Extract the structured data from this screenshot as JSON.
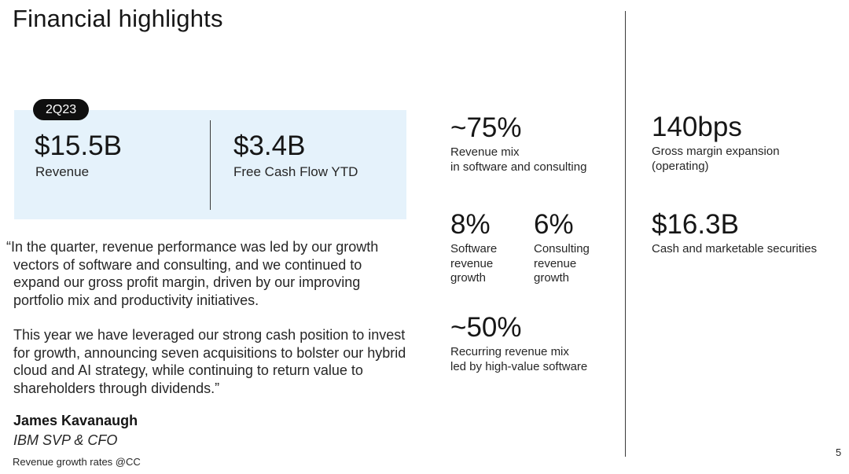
{
  "title": "Financial highlights",
  "panel": {
    "badge": "2Q23",
    "revenue_value": "$15.5B",
    "revenue_label": "Revenue",
    "fcf_value": "$3.4B",
    "fcf_label": "Free Cash Flow YTD"
  },
  "quote": {
    "paragraph1": "“In the quarter, revenue performance was led by our growth vectors of software and consulting, and we continued to expand our gross profit margin, driven by our improving portfolio mix and productivity initiatives.",
    "paragraph2": "This year we have leveraged our strong cash position to invest for growth, announcing seven acquisitions to bolster our hybrid cloud and AI strategy, while continuing to return value to shareholders through dividends.”",
    "author": "James Kavanaugh",
    "author_title": "IBM SVP & CFO"
  },
  "metrics": {
    "revenue_mix": {
      "value": "~75%",
      "line1": "Revenue mix",
      "line2": "in software and consulting"
    },
    "software_growth": {
      "value": "8%",
      "line1": "Software",
      "line2": "revenue",
      "line3": "growth"
    },
    "consulting_growth": {
      "value": "6%",
      "line1": "Consulting",
      "line2": "revenue",
      "line3": "growth"
    },
    "recurring_mix": {
      "value": "~50%",
      "line1": "Recurring revenue mix",
      "line2": "led by high-value software"
    },
    "gross_margin": {
      "value": "140bps",
      "line1": "Gross margin expansion",
      "line2": "(operating)"
    },
    "cash": {
      "value": "$16.3B",
      "line1": "Cash and marketable securities"
    }
  },
  "footnote": "Revenue growth rates @CC",
  "page_number": "5",
  "colors": {
    "panel_background": "#e5f2fb",
    "badge_background": "#0f0f0f",
    "text": "#161616"
  }
}
